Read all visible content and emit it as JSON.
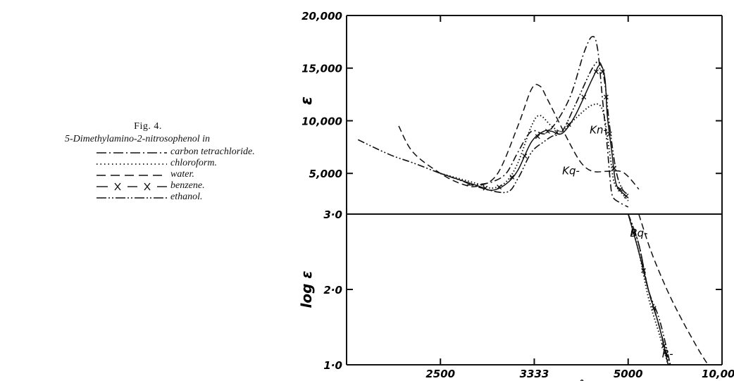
{
  "legend": {
    "title": "Fig. 4.",
    "subtitle": "5-Dimethylamino-2-nitrosophenol in",
    "entries": [
      {
        "label": "carbon tetrachloride.",
        "style": "dash-dot"
      },
      {
        "label": "chloroform.",
        "style": "dotted"
      },
      {
        "label": "water.",
        "style": "dashed"
      },
      {
        "label": "benzene.",
        "style": "cross"
      },
      {
        "label": "ethanol.",
        "style": "dash-dot-dot"
      }
    ]
  },
  "chart_data": {
    "type": "line",
    "xlabel": "Å",
    "x_scale": "reciprocal",
    "xlim": [
      2000,
      10000
    ],
    "x_ticks": [
      {
        "value": 2500,
        "label": "2500"
      },
      {
        "value": 3333,
        "label": "3333"
      },
      {
        "value": 5000,
        "label": "5000"
      },
      {
        "value": 10000,
        "label": "10,000"
      }
    ],
    "upper_ylabel": "ε",
    "upper_ylim": [
      1000,
      20000
    ],
    "upper_ticks": [
      {
        "value": 20000,
        "label": "20,000"
      },
      {
        "value": 15000,
        "label": "15,000"
      },
      {
        "value": 10000,
        "label": "10,000"
      },
      {
        "value": 5000,
        "label": "5,000"
      }
    ],
    "lower_ylabel": "log ε",
    "lower_ylim": [
      1.0,
      3.0
    ],
    "lower_ticks": [
      {
        "value": 3.0,
        "label": "3·0"
      },
      {
        "value": 2.0,
        "label": "2·0"
      },
      {
        "value": 1.0,
        "label": "1·0"
      }
    ],
    "annotations": [
      {
        "text": "Kq-",
        "x": 3700,
        "eps": 4900
      },
      {
        "text": "Kn-",
        "x": 4150,
        "eps": 8800
      },
      {
        "text": "Bq-",
        "x": 5050,
        "log": 2.7
      },
      {
        "text": "R-",
        "x": 6100,
        "log": 1.1
      }
    ],
    "series": [
      {
        "style": "dash-dot",
        "upper": [
          [
            2690,
            3900
          ],
          [
            2780,
            3950
          ],
          [
            2900,
            4200
          ],
          [
            3030,
            5000
          ],
          [
            3150,
            7000
          ],
          [
            3300,
            9000
          ],
          [
            3500,
            8900
          ],
          [
            3800,
            12000
          ],
          [
            4050,
            16500
          ],
          [
            4200,
            18000
          ],
          [
            4300,
            16800
          ],
          [
            4400,
            12000
          ],
          [
            4500,
            7500
          ],
          [
            4560,
            4500
          ],
          [
            4620,
            2800
          ],
          [
            4800,
            2200
          ],
          [
            5000,
            1800
          ]
        ],
        "lower": [
          [
            5000,
            3.0
          ],
          [
            5300,
            2.6
          ],
          [
            5600,
            2.0
          ],
          [
            6000,
            1.5
          ],
          [
            6400,
            1.0
          ]
        ]
      },
      {
        "style": "dotted",
        "upper": [
          [
            2500,
            5000
          ],
          [
            2780,
            4000
          ],
          [
            2900,
            3600
          ],
          [
            3030,
            4200
          ],
          [
            3150,
            6000
          ],
          [
            3300,
            9500
          ],
          [
            3400,
            10500
          ],
          [
            3550,
            9500
          ],
          [
            3700,
            9000
          ],
          [
            3900,
            10200
          ],
          [
            4200,
            11500
          ],
          [
            4400,
            11000
          ],
          [
            4550,
            7000
          ],
          [
            4650,
            4200
          ],
          [
            4800,
            3300
          ],
          [
            5000,
            2400
          ]
        ],
        "lower": [
          [
            5000,
            3.0
          ],
          [
            5300,
            2.5
          ],
          [
            5600,
            1.9
          ],
          [
            6000,
            1.4
          ],
          [
            6350,
            1.0
          ]
        ]
      },
      {
        "style": "dashed",
        "upper": [
          [
            2250,
            9500
          ],
          [
            2330,
            7000
          ],
          [
            2500,
            5000
          ],
          [
            2650,
            4000
          ],
          [
            2780,
            3800
          ],
          [
            2950,
            5000
          ],
          [
            3150,
            9500
          ],
          [
            3300,
            13000
          ],
          [
            3400,
            13300
          ],
          [
            3500,
            12000
          ],
          [
            3800,
            8000
          ],
          [
            4000,
            6000
          ],
          [
            4200,
            5200
          ],
          [
            4500,
            5200
          ],
          [
            4800,
            5200
          ],
          [
            5000,
            4700
          ],
          [
            5300,
            3500
          ]
        ],
        "lower": [
          [
            5300,
            3.0
          ],
          [
            5700,
            2.5
          ],
          [
            6300,
            2.0
          ],
          [
            7000,
            1.6
          ],
          [
            8000,
            1.2
          ],
          [
            8700,
            1.0
          ]
        ]
      },
      {
        "style": "cross",
        "upper": [
          [
            2500,
            5000
          ],
          [
            2780,
            3800
          ],
          [
            2900,
            3400
          ],
          [
            3030,
            4000
          ],
          [
            3150,
            5300
          ],
          [
            3300,
            8000
          ],
          [
            3450,
            9000
          ],
          [
            3550,
            9000
          ],
          [
            3700,
            8800
          ],
          [
            3900,
            10500
          ],
          [
            4200,
            14000
          ],
          [
            4350,
            15300
          ],
          [
            4450,
            14000
          ],
          [
            4500,
            10500
          ],
          [
            4600,
            7000
          ],
          [
            4700,
            4000
          ],
          [
            4900,
            3000
          ],
          [
            5000,
            2700
          ]
        ],
        "lower": [
          [
            5000,
            3.0
          ],
          [
            5300,
            2.5
          ],
          [
            5600,
            2.0
          ],
          [
            6000,
            1.5
          ],
          [
            6350,
            1.0
          ]
        ]
      },
      {
        "style": "dash-dot-dot",
        "upper": [
          [
            2050,
            8200
          ],
          [
            2200,
            6800
          ],
          [
            2330,
            6000
          ],
          [
            2500,
            5000
          ],
          [
            2650,
            4300
          ],
          [
            2780,
            3700
          ],
          [
            3030,
            3200
          ],
          [
            3150,
            4500
          ],
          [
            3300,
            7000
          ],
          [
            3450,
            8000
          ],
          [
            3550,
            8500
          ],
          [
            3700,
            9000
          ],
          [
            3900,
            11500
          ],
          [
            4200,
            15000
          ],
          [
            4350,
            15500
          ],
          [
            4450,
            13500
          ],
          [
            4550,
            9500
          ],
          [
            4700,
            5200
          ],
          [
            4850,
            3500
          ],
          [
            5000,
            3000
          ]
        ],
        "lower": [
          [
            5000,
            3.0
          ],
          [
            5300,
            2.6
          ],
          [
            5600,
            2.0
          ],
          [
            6000,
            1.6
          ],
          [
            6450,
            1.0
          ]
        ]
      }
    ]
  }
}
